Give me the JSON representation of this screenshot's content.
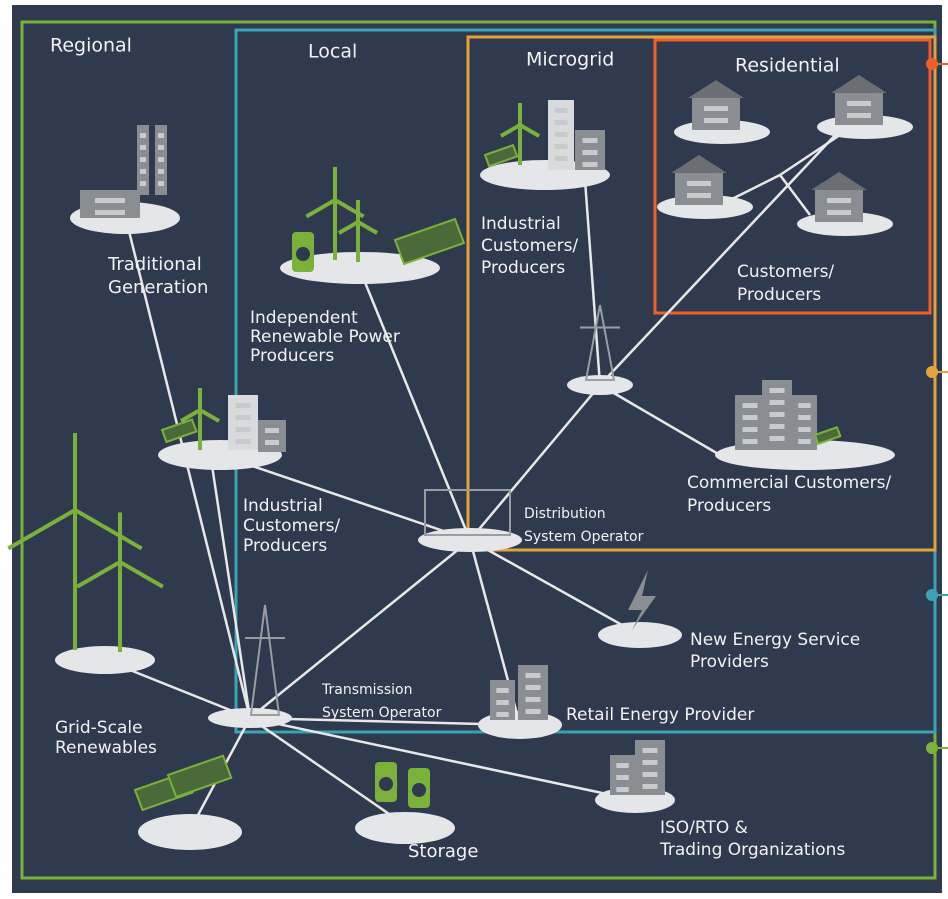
{
  "regions": [
    {
      "label": "Regional"
    },
    {
      "label": "Local"
    },
    {
      "label": "Microgrid"
    },
    {
      "label": "Residential"
    }
  ],
  "nodes": [
    {
      "label": [
        "Traditional",
        "Generation"
      ]
    },
    {
      "label": [
        "Independent",
        "Renewable Power",
        "Producers"
      ]
    },
    {
      "label": [
        "Industrial",
        "Customers/",
        "Producers"
      ]
    },
    {
      "label": [
        "Grid-Scale",
        "Renewables"
      ]
    },
    {
      "label": [
        "Transmission",
        "System Operator"
      ]
    },
    {
      "label": [
        "Distribution",
        "System Operator"
      ]
    },
    {
      "label": [
        "Storage"
      ]
    },
    {
      "label": [
        "ISO/RTO &",
        "Trading Organizations"
      ]
    },
    {
      "label": [
        "Retail Energy Provider"
      ]
    },
    {
      "label": [
        "New Energy Service",
        "Providers"
      ]
    },
    {
      "label": [
        "Industrial",
        "Customers/",
        "Producers"
      ]
    },
    {
      "label": [
        "Commercial Customers/",
        "Producers"
      ]
    },
    {
      "label": [
        "Customers/",
        "Producers"
      ]
    }
  ]
}
